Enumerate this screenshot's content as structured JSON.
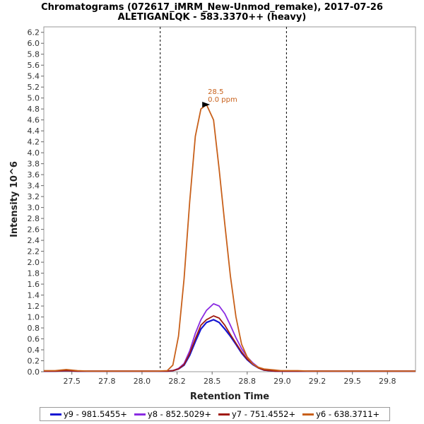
{
  "chart_data": {
    "type": "line",
    "title": "Chromatograms (072617_iMRM_New-Unmod_remake), 2017-07-26",
    "subtitle": "ALETIGANLQK - 583.3370++ (heavy)",
    "xlabel": "Retention Time",
    "ylabel": "Intensity 10^6",
    "xlim": [
      27.3,
      29.95
    ],
    "ylim": [
      0,
      6.3
    ],
    "xticks": [
      "27.5",
      "27.8",
      "28.0",
      "28.2",
      "28.5",
      "28.8",
      "29.0",
      "29.2",
      "29.5",
      "29.8"
    ],
    "xtick_values": [
      27.5,
      27.75,
      28.0,
      28.25,
      28.5,
      28.75,
      29.0,
      29.25,
      29.5,
      29.75
    ],
    "yticks": [
      "0.0",
      "0.2",
      "0.4",
      "0.6",
      "0.8",
      "1.0",
      "1.2",
      "1.4",
      "1.6",
      "1.8",
      "2.0",
      "2.2",
      "2.4",
      "2.6",
      "2.8",
      "3.0",
      "3.2",
      "3.4",
      "3.6",
      "3.8",
      "4.0",
      "4.2",
      "4.4",
      "4.6",
      "4.8",
      "5.0",
      "5.2",
      "5.4",
      "5.6",
      "5.8",
      "6.0",
      "6.2"
    ],
    "ytick_values": [
      0,
      0.2,
      0.4,
      0.6,
      0.8,
      1.0,
      1.2,
      1.4,
      1.6,
      1.8,
      2.0,
      2.2,
      2.4,
      2.6,
      2.8,
      3.0,
      3.2,
      3.4,
      3.6,
      3.8,
      4.0,
      4.2,
      4.4,
      4.6,
      4.8,
      5.0,
      5.2,
      5.4,
      5.6,
      5.8,
      6.0,
      6.2
    ],
    "boundaries": [
      28.13,
      29.03
    ],
    "peak_annotation": {
      "x": 28.51,
      "y": 4.88,
      "rt_label": "28.5",
      "ppm_label": "0.0 ppm",
      "color": "#c8601a"
    },
    "x": [
      27.3,
      27.38,
      27.46,
      27.54,
      27.62,
      27.7,
      27.78,
      27.86,
      27.94,
      28.02,
      28.1,
      28.18,
      28.22,
      28.26,
      28.3,
      28.34,
      28.38,
      28.42,
      28.46,
      28.51,
      28.55,
      28.59,
      28.63,
      28.67,
      28.71,
      28.75,
      28.79,
      28.83,
      28.87,
      28.91,
      28.95,
      28.99,
      29.03,
      29.11,
      29.19,
      29.27,
      29.35,
      29.43,
      29.51,
      29.59,
      29.67,
      29.75,
      29.83,
      29.95
    ],
    "series": [
      {
        "name": "y9 - 981.5455+",
        "color": "#1414d2",
        "values": [
          0.01,
          0.01,
          0.02,
          0.01,
          0.01,
          0.01,
          0.01,
          0.01,
          0.01,
          0.01,
          0.01,
          0.01,
          0.02,
          0.05,
          0.12,
          0.3,
          0.55,
          0.78,
          0.9,
          0.95,
          0.9,
          0.78,
          0.65,
          0.5,
          0.34,
          0.22,
          0.13,
          0.07,
          0.03,
          0.02,
          0.01,
          0.01,
          0.01,
          0.01,
          0.01,
          0.01,
          0.01,
          0.01,
          0.01,
          0.01,
          0.01,
          0.01,
          0.01,
          0.01
        ]
      },
      {
        "name": "y8 - 852.5029+",
        "color": "#8a2be2",
        "values": [
          0.01,
          0.01,
          0.02,
          0.01,
          0.01,
          0.01,
          0.01,
          0.01,
          0.01,
          0.01,
          0.01,
          0.01,
          0.02,
          0.06,
          0.15,
          0.38,
          0.7,
          0.95,
          1.12,
          1.24,
          1.2,
          1.06,
          0.85,
          0.62,
          0.42,
          0.27,
          0.16,
          0.08,
          0.04,
          0.02,
          0.01,
          0.01,
          0.01,
          0.01,
          0.01,
          0.01,
          0.01,
          0.01,
          0.01,
          0.01,
          0.01,
          0.01,
          0.01,
          0.01
        ]
      },
      {
        "name": "y7 - 751.4552+",
        "color": "#a01a10",
        "values": [
          0.01,
          0.01,
          0.02,
          0.01,
          0.01,
          0.01,
          0.01,
          0.01,
          0.01,
          0.01,
          0.01,
          0.01,
          0.02,
          0.05,
          0.13,
          0.33,
          0.6,
          0.85,
          0.95,
          1.02,
          0.98,
          0.85,
          0.68,
          0.52,
          0.36,
          0.23,
          0.14,
          0.07,
          0.03,
          0.02,
          0.01,
          0.01,
          0.01,
          0.01,
          0.01,
          0.01,
          0.01,
          0.01,
          0.01,
          0.01,
          0.01,
          0.01,
          0.01,
          0.01
        ]
      },
      {
        "name": "y6 - 638.3711+",
        "color": "#c8601a",
        "values": [
          0.02,
          0.02,
          0.04,
          0.02,
          0.01,
          0.01,
          0.01,
          0.01,
          0.01,
          0.01,
          0.01,
          0.02,
          0.12,
          0.65,
          1.7,
          3.1,
          4.3,
          4.8,
          4.88,
          4.6,
          3.7,
          2.7,
          1.75,
          1.0,
          0.5,
          0.27,
          0.14,
          0.08,
          0.05,
          0.04,
          0.03,
          0.02,
          0.02,
          0.02,
          0.01,
          0.01,
          0.01,
          0.01,
          0.01,
          0.01,
          0.01,
          0.01,
          0.01,
          0.01
        ]
      }
    ],
    "legend_position": "bottom",
    "grid": false
  }
}
